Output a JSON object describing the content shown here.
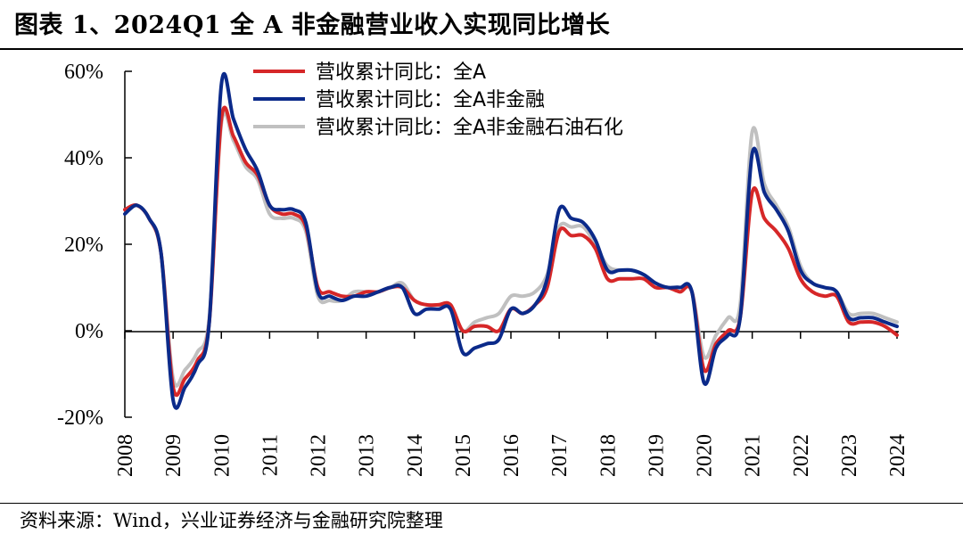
{
  "header": {
    "title": "图表 1、2024Q1 全 A 非金融营业收入实现同比增长"
  },
  "footer": {
    "source": "资料来源：Wind，兴业证券经济与金融研究院整理"
  },
  "colors": {
    "series_all_a": "#d62728",
    "series_non_fin": "#0b2a8a",
    "series_non_fin_ex_petro": "#c0c0c0"
  },
  "chart_data": {
    "type": "line",
    "title": "图表 1、2024Q1 全 A 非金融营业收入实现同比增长",
    "xlabel": "",
    "ylabel": "",
    "ylim": [
      -20,
      60
    ],
    "xlim": [
      2008,
      2024.25
    ],
    "y_ticks": [
      -20,
      0,
      20,
      40,
      60
    ],
    "y_tick_labels": [
      "-20%",
      "0%",
      "20%",
      "40%",
      "60%"
    ],
    "x_ticks": [
      2008,
      2009,
      2010,
      2011,
      2012,
      2013,
      2014,
      2015,
      2016,
      2017,
      2018,
      2019,
      2020,
      2021,
      2022,
      2023,
      2024
    ],
    "x_tick_labels": [
      "2008",
      "2009",
      "2010",
      "2011",
      "2012",
      "2013",
      "2014",
      "2015",
      "2016",
      "2017",
      "2018",
      "2019",
      "2020",
      "2021",
      "2022",
      "2023",
      "2024"
    ],
    "legend_position": "top-center",
    "grid": false,
    "series": [
      {
        "name": "营收累计同比：全A",
        "color": "#d62728",
        "x": [
          2008.0,
          2008.25,
          2008.5,
          2008.75,
          2009.0,
          2009.25,
          2009.5,
          2009.75,
          2010.0,
          2010.25,
          2010.5,
          2010.75,
          2011.0,
          2011.25,
          2011.5,
          2011.75,
          2012.0,
          2012.25,
          2012.5,
          2012.75,
          2013.0,
          2013.25,
          2013.5,
          2013.75,
          2014.0,
          2014.25,
          2014.5,
          2014.75,
          2015.0,
          2015.25,
          2015.5,
          2015.75,
          2016.0,
          2016.25,
          2016.5,
          2016.75,
          2017.0,
          2017.25,
          2017.5,
          2017.75,
          2018.0,
          2018.25,
          2018.5,
          2018.75,
          2019.0,
          2019.25,
          2019.5,
          2019.75,
          2020.0,
          2020.25,
          2020.5,
          2020.75,
          2021.0,
          2021.25,
          2021.5,
          2021.75,
          2022.0,
          2022.25,
          2022.5,
          2022.75,
          2023.0,
          2023.25,
          2023.5,
          2023.75,
          2024.0
        ],
        "values": [
          28,
          29,
          26,
          18,
          -13,
          -11,
          -7,
          2,
          49,
          45,
          39,
          36,
          29,
          27,
          27,
          24,
          10,
          9,
          8,
          8,
          9,
          9,
          10,
          10,
          7,
          6,
          6,
          6,
          0,
          1,
          1,
          0,
          5,
          4,
          6,
          10,
          23,
          22,
          22,
          19,
          12,
          12,
          12,
          12,
          10,
          10,
          9,
          9,
          -9,
          -3,
          0,
          3,
          32,
          26,
          23,
          19,
          12,
          9,
          8,
          8,
          2,
          2,
          2,
          1,
          -1
        ]
      },
      {
        "name": "营收累计同比：全A非金融",
        "color": "#0b2a8a",
        "x": [
          2008.0,
          2008.25,
          2008.5,
          2008.75,
          2009.0,
          2009.25,
          2009.5,
          2009.75,
          2010.0,
          2010.25,
          2010.5,
          2010.75,
          2011.0,
          2011.25,
          2011.5,
          2011.75,
          2012.0,
          2012.25,
          2012.5,
          2012.75,
          2013.0,
          2013.25,
          2013.5,
          2013.75,
          2014.0,
          2014.25,
          2014.5,
          2014.75,
          2015.0,
          2015.25,
          2015.5,
          2015.75,
          2016.0,
          2016.25,
          2016.5,
          2016.75,
          2017.0,
          2017.25,
          2017.5,
          2017.75,
          2018.0,
          2018.25,
          2018.5,
          2018.75,
          2019.0,
          2019.25,
          2019.5,
          2019.75,
          2020.0,
          2020.25,
          2020.5,
          2020.75,
          2021.0,
          2021.25,
          2021.5,
          2021.75,
          2022.0,
          2022.25,
          2022.5,
          2022.75,
          2023.0,
          2023.25,
          2023.5,
          2023.75,
          2024.0
        ],
        "values": [
          27,
          29,
          26,
          18,
          -16,
          -13,
          -8,
          2,
          57,
          49,
          42,
          37,
          29,
          28,
          28,
          25,
          9,
          8,
          7,
          8,
          8,
          9,
          10,
          10,
          4,
          5,
          5,
          5,
          -5,
          -4,
          -3,
          -2,
          5,
          4,
          6,
          12,
          28,
          26,
          25,
          21,
          14,
          14,
          14,
          13,
          11,
          10,
          10,
          9,
          -12,
          -4,
          -1,
          3,
          41,
          32,
          28,
          23,
          14,
          11,
          10,
          9,
          3,
          3,
          3,
          2,
          1
        ]
      },
      {
        "name": "营收累计同比：全A非金融石油石化",
        "color": "#c0c0c0",
        "x": [
          2008.0,
          2008.25,
          2008.5,
          2008.75,
          2009.0,
          2009.25,
          2009.5,
          2009.75,
          2010.0,
          2010.25,
          2010.5,
          2010.75,
          2011.0,
          2011.25,
          2011.5,
          2011.75,
          2012.0,
          2012.25,
          2012.5,
          2012.75,
          2013.0,
          2013.25,
          2013.5,
          2013.75,
          2014.0,
          2014.25,
          2014.5,
          2014.75,
          2015.0,
          2015.25,
          2015.5,
          2015.75,
          2016.0,
          2016.25,
          2016.5,
          2016.75,
          2017.0,
          2017.25,
          2017.5,
          2017.75,
          2018.0,
          2018.25,
          2018.5,
          2018.75,
          2019.0,
          2019.25,
          2019.5,
          2019.75,
          2020.0,
          2020.25,
          2020.5,
          2020.75,
          2021.0,
          2021.25,
          2021.5,
          2021.75,
          2022.0,
          2022.25,
          2022.5,
          2022.75,
          2023.0,
          2023.25,
          2023.5,
          2023.75,
          2024.0
        ],
        "values": [
          28,
          29,
          26,
          18,
          -11,
          -9,
          -5,
          3,
          48,
          44,
          38,
          35,
          27,
          26,
          26,
          23,
          8,
          7,
          7,
          9,
          9,
          9,
          10,
          11,
          7,
          6,
          6,
          6,
          0,
          2,
          3,
          4,
          8,
          8,
          9,
          13,
          24,
          24,
          24,
          20,
          15,
          14,
          14,
          13,
          11,
          10,
          10,
          9,
          -6,
          -1,
          3,
          6,
          46,
          34,
          29,
          24,
          15,
          11,
          10,
          9,
          4,
          4,
          4,
          3,
          2
        ]
      }
    ]
  }
}
